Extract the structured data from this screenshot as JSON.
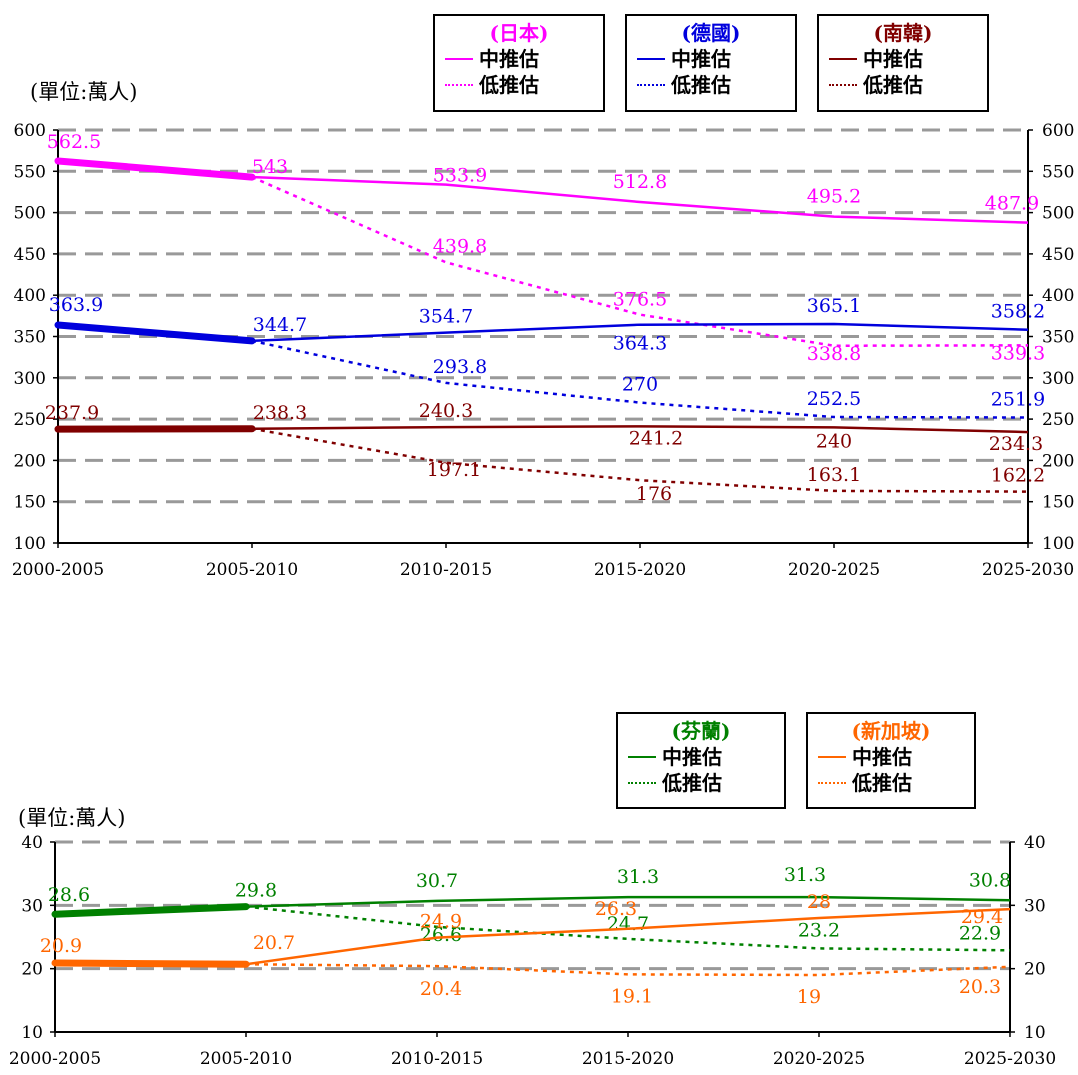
{
  "chart_data": [
    {
      "type": "line",
      "unit_label": "(單位:萬人)",
      "categories": [
        "2000-2005",
        "2005-2010",
        "2010-2015",
        "2015-2020",
        "2020-2025",
        "2025-2030"
      ],
      "ylim": [
        100,
        600
      ],
      "yticks": [
        100,
        150,
        200,
        250,
        300,
        350,
        400,
        450,
        500,
        550,
        600
      ],
      "grid": true,
      "legend": [
        {
          "title": "(日本)",
          "color": "#ff00ff",
          "mid": "中推估",
          "low": "低推估"
        },
        {
          "title": "(德國)",
          "color": "#0000dd",
          "mid": "中推估",
          "low": "低推估"
        },
        {
          "title": "(南韓)",
          "color": "#800000",
          "mid": "中推估",
          "low": "低推估"
        }
      ],
      "series": [
        {
          "name": "日本 中推估",
          "color": "#ff00ff",
          "style": "solid",
          "values": [
            562.5,
            543,
            533.9,
            512.8,
            495.2,
            487.9
          ]
        },
        {
          "name": "日本 低推估",
          "color": "#ff00ff",
          "style": "dotted",
          "values": [
            null,
            543,
            439.8,
            376.5,
            338.8,
            339.3
          ]
        },
        {
          "name": "德國 中推估",
          "color": "#0000dd",
          "style": "solid",
          "values": [
            363.9,
            344.7,
            354.7,
            364.3,
            365.1,
            358.2
          ]
        },
        {
          "name": "德國 低推估",
          "color": "#0000dd",
          "style": "dotted",
          "values": [
            null,
            344.7,
            293.8,
            270,
            252.5,
            251.9
          ]
        },
        {
          "name": "南韓 中推估",
          "color": "#800000",
          "style": "solid",
          "values": [
            237.9,
            238.3,
            240.3,
            241.2,
            240,
            234.3
          ]
        },
        {
          "name": "南韓 低推估",
          "color": "#800000",
          "style": "dotted",
          "values": [
            null,
            238.3,
            197.1,
            176,
            163.1,
            162.2
          ]
        }
      ]
    },
    {
      "type": "line",
      "unit_label": "(單位:萬人)",
      "categories": [
        "2000-2005",
        "2005-2010",
        "2010-2015",
        "2015-2020",
        "2020-2025",
        "2025-2030"
      ],
      "ylim": [
        10,
        40
      ],
      "yticks": [
        10,
        20,
        30,
        40
      ],
      "grid": true,
      "legend": [
        {
          "title": "(芬蘭)",
          "color": "#008000",
          "mid": "中推估",
          "low": "低推估"
        },
        {
          "title": "(新加坡)",
          "color": "#ff6600",
          "mid": "中推估",
          "low": "低推估"
        }
      ],
      "series": [
        {
          "name": "芬蘭 中推估",
          "color": "#008000",
          "style": "solid",
          "values": [
            28.6,
            29.8,
            30.7,
            31.3,
            31.3,
            30.8
          ]
        },
        {
          "name": "芬蘭 低推估",
          "color": "#008000",
          "style": "dotted",
          "values": [
            null,
            29.8,
            26.6,
            24.7,
            23.2,
            22.9
          ]
        },
        {
          "name": "新加坡 中推估",
          "color": "#ff6600",
          "style": "solid",
          "values": [
            20.9,
            20.7,
            24.9,
            26.3,
            28,
            29.4
          ]
        },
        {
          "name": "新加坡 低推估",
          "color": "#ff6600",
          "style": "dotted",
          "values": [
            null,
            20.7,
            20.4,
            19.1,
            19,
            20.3
          ]
        }
      ]
    }
  ]
}
